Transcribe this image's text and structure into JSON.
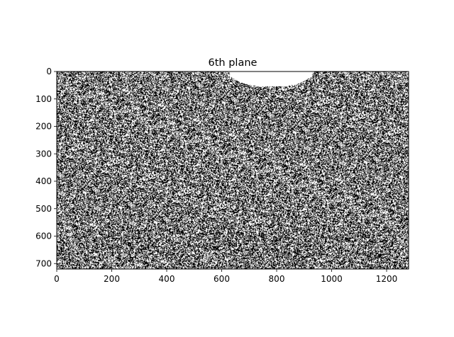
{
  "chart_data": {
    "type": "heatmap",
    "title": "6th plane",
    "xlabel": "",
    "ylabel": "",
    "image_width": 1280,
    "image_height": 720,
    "xlim": [
      0,
      1280
    ],
    "ylim": [
      720,
      0
    ],
    "xticks": [
      0,
      200,
      400,
      600,
      800,
      1000,
      1200
    ],
    "yticks": [
      0,
      100,
      200,
      300,
      400,
      500,
      600,
      700
    ],
    "xtick_labels": [
      "0",
      "200",
      "400",
      "600",
      "800",
      "1000",
      "1200"
    ],
    "ytick_labels": [
      "0",
      "100",
      "200",
      "300",
      "400",
      "500",
      "600",
      "700"
    ],
    "colormap": "gray",
    "values": "binary bit-plane noise (0 = black, 1 = white)",
    "features": [
      {
        "kind": "solid-white-region",
        "x_range": [
          630,
          930
        ],
        "y_range": [
          0,
          55
        ]
      },
      {
        "kind": "sparse-dark-band",
        "x_range": [
          250,
          1200
        ],
        "y_range": [
          580,
          680
        ]
      }
    ],
    "grid": false,
    "legend": "none"
  }
}
